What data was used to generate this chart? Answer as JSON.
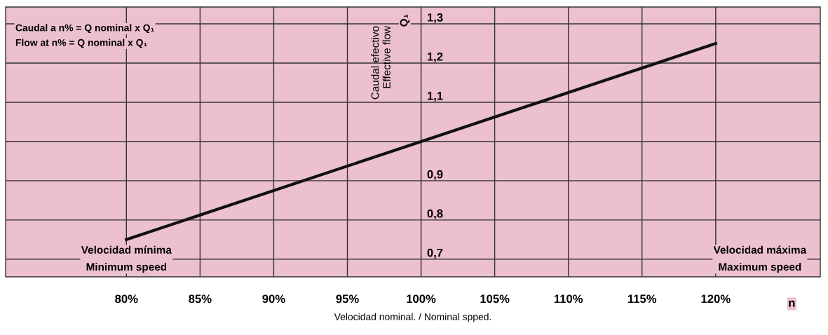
{
  "chart_data": {
    "type": "line",
    "xlabel": "Velocidad nominal. / Nominal spped.",
    "ylabel": "Caudal efectivo\nEffective flow",
    "x": [
      80,
      100,
      120
    ],
    "series": [
      {
        "color": "#111111",
        "values": [
          0.75,
          1.0,
          1.25
        ]
      }
    ],
    "xlim": [
      71.8,
      127.1
    ],
    "ylim": [
      0.655,
      1.343
    ],
    "xticks": [
      {
        "value": 80,
        "label": "80%"
      },
      {
        "value": 85,
        "label": "85%"
      },
      {
        "value": 90,
        "label": "90%"
      },
      {
        "value": 95,
        "label": "95%"
      },
      {
        "value": 100,
        "label": "100%"
      },
      {
        "value": 105,
        "label": "105%"
      },
      {
        "value": 110,
        "label": "110%"
      },
      {
        "value": 115,
        "label": "115%"
      },
      {
        "value": 120,
        "label": "120%"
      }
    ],
    "yticks": [
      {
        "value": 0.7,
        "label": "0,7"
      },
      {
        "value": 0.8,
        "label": "0,8"
      },
      {
        "value": 0.9,
        "label": "0,9"
      },
      {
        "value": 1.0,
        "label": null
      },
      {
        "value": 1.1,
        "label": "1,1"
      },
      {
        "value": 1.2,
        "label": "1,2"
      },
      {
        "value": 1.3,
        "label": "1,3"
      }
    ],
    "grid": true,
    "marker": "none",
    "line_style": "solid",
    "annotations": [
      "Caudal a n% = Q nominal x Q₁",
      "Flow at n% = Q nominal x Q₁",
      "Velocidad mínima\nMinimum speed",
      "Velocidad máxima\nMaximum speed",
      "n",
      "Q₁"
    ]
  }
}
